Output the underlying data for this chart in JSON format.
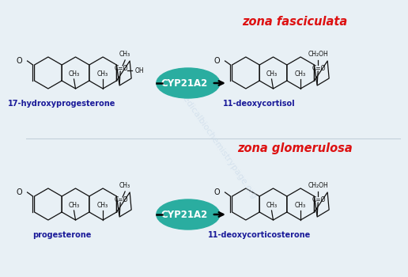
{
  "background_color": "#e8f0f5",
  "watermark_text": "themedicalbiochemistrypage.org",
  "watermark_color": "#c8d8e8",
  "watermark_alpha": 0.6,
  "top_zone_label": "zona fasciculata",
  "bottom_zone_label": "zona glomerulosa",
  "zone_color": "#dd1111",
  "zone_fontsize": 10.5,
  "enzyme_text": "CYP21A2",
  "enzyme_bg_color": "#2aada0",
  "enzyme_text_color": "white",
  "enzyme_fontsize": 8.5,
  "compound_color": "#1a1a99",
  "compound_fontsize": 7.0,
  "struct_color": "#111111",
  "lw": 0.9,
  "top_left_compound": "17-hydroxyprogesterone",
  "top_right_compound": "11-deoxycortisol",
  "bottom_left_compound": "progesterone",
  "bottom_right_compound": "11-deoxycorticosterone"
}
